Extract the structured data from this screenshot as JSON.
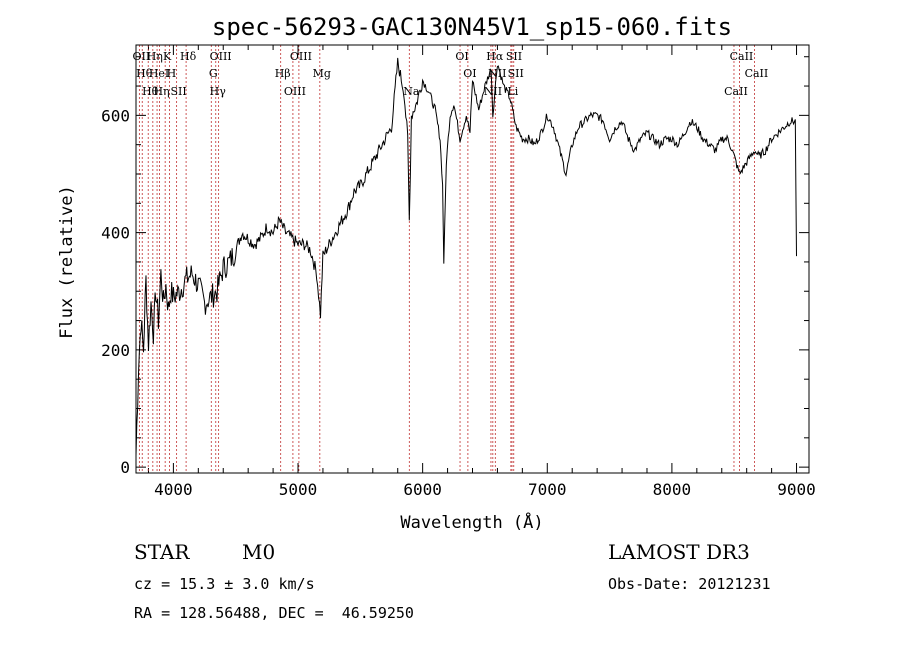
{
  "chart_data": {
    "type": "line",
    "title": "spec-56293-GAC130N45V1_sp15-060.fits",
    "xlabel": "Wavelength (Å)",
    "ylabel": "Flux (relative)",
    "xlim": [
      3700,
      9100
    ],
    "ylim": [
      -10,
      720
    ],
    "xticks": [
      "4000",
      "5000",
      "6000",
      "7000",
      "8000",
      "9000"
    ],
    "yticks": [
      "0",
      "200",
      "400",
      "600"
    ],
    "series": [
      {
        "x": [
          3700,
          3720,
          3740,
          3760,
          3780,
          3800,
          3820,
          3840,
          3860,
          3880,
          3900,
          3920,
          3940,
          3960,
          3980,
          4000,
          4050,
          4100,
          4150,
          4200,
          4250,
          4300,
          4350,
          4400,
          4450,
          4500,
          4550,
          4600,
          4650,
          4700,
          4750,
          4800,
          4850,
          4900,
          4950,
          5000,
          5050,
          5100,
          5150,
          5180,
          5200,
          5250,
          5300,
          5350,
          5400,
          5450,
          5500,
          5550,
          5600,
          5650,
          5700,
          5750,
          5800,
          5850,
          5880,
          5893,
          5910,
          5950,
          6000,
          6050,
          6100,
          6140,
          6160,
          6170,
          6190,
          6220,
          6250,
          6300,
          6350,
          6380,
          6400,
          6450,
          6500,
          6550,
          6563,
          6600,
          6650,
          6700,
          6750,
          6800,
          6850,
          6900,
          6950,
          7000,
          7050,
          7100,
          7150,
          7200,
          7250,
          7300,
          7350,
          7400,
          7450,
          7500,
          7550,
          7600,
          7650,
          7700,
          7750,
          7800,
          7850,
          7900,
          7950,
          8000,
          8050,
          8100,
          8150,
          8200,
          8250,
          8300,
          8350,
          8400,
          8450,
          8500,
          8542,
          8600,
          8662,
          8700,
          8750,
          8800,
          8850,
          8900,
          8950,
          8990,
          9000
        ],
        "y": [
          20,
          170,
          250,
          200,
          320,
          210,
          280,
          230,
          300,
          250,
          330,
          280,
          310,
          270,
          300,
          290,
          300,
          320,
          330,
          310,
          280,
          290,
          300,
          340,
          350,
          370,
          400,
          390,
          380,
          390,
          410,
          400,
          420,
          400,
          390,
          380,
          380,
          370,
          330,
          260,
          360,
          380,
          400,
          420,
          440,
          470,
          480,
          500,
          520,
          540,
          560,
          580,
          690,
          640,
          560,
          420,
          600,
          620,
          660,
          640,
          610,
          560,
          480,
          350,
          520,
          600,
          620,
          560,
          600,
          570,
          660,
          610,
          650,
          680,
          600,
          690,
          650,
          630,
          580,
          560,
          560,
          550,
          570,
          600,
          580,
          540,
          500,
          550,
          580,
          590,
          600,
          600,
          590,
          560,
          580,
          590,
          560,
          540,
          560,
          570,
          560,
          550,
          560,
          560,
          550,
          570,
          590,
          580,
          560,
          550,
          540,
          560,
          560,
          530,
          500,
          520,
          540,
          530,
          540,
          560,
          570,
          580,
          590,
          590,
          360
        ]
      }
    ],
    "lines": [
      {
        "x": 3727,
        "label": "OII"
      },
      {
        "x": 3750,
        "label": "Hθ"
      },
      {
        "x": 3798,
        "label": "Hθ"
      },
      {
        "x": 3835,
        "label": "Hη"
      },
      {
        "x": 3869,
        "label": "HeI"
      },
      {
        "x": 3889,
        "label": "Hη"
      },
      {
        "x": 3934,
        "label": "K"
      },
      {
        "x": 3968,
        "label": "H"
      },
      {
        "x": 4026,
        "label": "SII"
      },
      {
        "x": 4102,
        "label": "Hδ"
      },
      {
        "x": 4304,
        "label": "G"
      },
      {
        "x": 4340,
        "label": "Hγ"
      },
      {
        "x": 4363,
        "label": "OIII"
      },
      {
        "x": 4861,
        "label": "Hβ"
      },
      {
        "x": 4959,
        "label": "OIII"
      },
      {
        "x": 5007,
        "label": "OIII"
      },
      {
        "x": 5175,
        "label": "Mg"
      },
      {
        "x": 5893,
        "label": "Na"
      },
      {
        "x": 6300,
        "label": "OI"
      },
      {
        "x": 6363,
        "label": "OI"
      },
      {
        "x": 6548,
        "label": "NII"
      },
      {
        "x": 6563,
        "label": "Hα"
      },
      {
        "x": 6583,
        "label": "NII"
      },
      {
        "x": 6708,
        "label": "Li"
      },
      {
        "x": 6717,
        "label": "SII"
      },
      {
        "x": 6731,
        "label": "SII"
      },
      {
        "x": 8498,
        "label": "CaII"
      },
      {
        "x": 8542,
        "label": "CaII"
      },
      {
        "x": 8662,
        "label": "CaII"
      }
    ]
  },
  "info": {
    "class": "STAR",
    "subclass": "M0",
    "survey": "LAMOST DR3",
    "cz": "cz = 15.3 ± 3.0 km/s",
    "obs_date": "Obs-Date: 20121231",
    "radec": "RA = 128.56488, DEC =  46.59250"
  }
}
